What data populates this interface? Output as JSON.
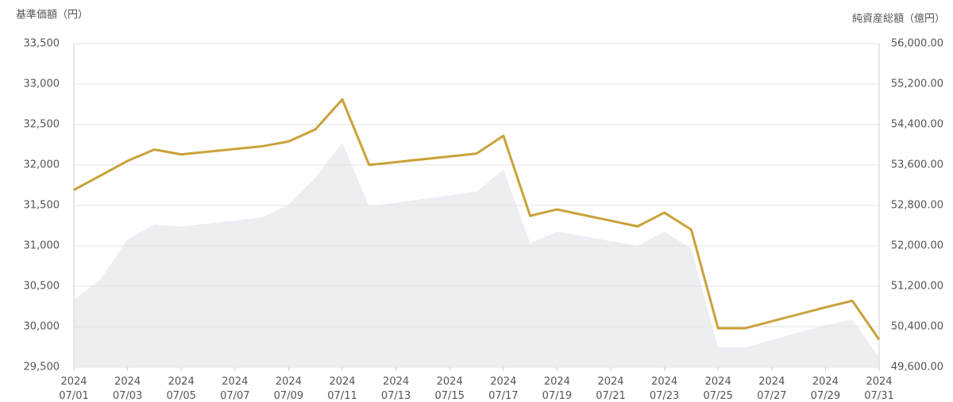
{
  "chart_data": {
    "type": "line-area",
    "y_label": "基準価額（円）",
    "y2_label": "純資産総額（億円）",
    "x": [
      "2024-07-01",
      "2024-07-02",
      "2024-07-03",
      "2024-07-04",
      "2024-07-05",
      "2024-07-08",
      "2024-07-09",
      "2024-07-10",
      "2024-07-11",
      "2024-07-12",
      "2024-07-16",
      "2024-07-17",
      "2024-07-18",
      "2024-07-19",
      "2024-07-22",
      "2024-07-23",
      "2024-07-24",
      "2024-07-25",
      "2024-07-26",
      "2024-07-29",
      "2024-07-30",
      "2024-07-31"
    ],
    "series": [
      {
        "name": "基準価額",
        "kind": "line",
        "color": "#c9a23a",
        "values": [
          31690,
          31870,
          32050,
          32190,
          32130,
          32230,
          32290,
          32440,
          32810,
          32000,
          32140,
          32360,
          31370,
          31450,
          31240,
          31410,
          31200,
          29980,
          29980,
          30240,
          30320,
          29840
        ]
      },
      {
        "name": "純資産総額",
        "kind": "area",
        "axis": "y2",
        "color": "#eceef2",
        "values": [
          50930,
          51340,
          52130,
          52420,
          52380,
          52560,
          52820,
          53350,
          54040,
          52780,
          53070,
          53510,
          52050,
          52280,
          52000,
          52280,
          51950,
          49990,
          49990,
          50430,
          50540,
          49800
        ]
      }
    ],
    "xlim": [
      "2024-07-01",
      "2024-07-31"
    ],
    "xticks": [
      {
        "value": "2024-07-01",
        "label": [
          "2024",
          "07/01"
        ]
      },
      {
        "value": "2024-07-03",
        "label": [
          "2024",
          "07/03"
        ]
      },
      {
        "value": "2024-07-05",
        "label": [
          "2024",
          "07/05"
        ]
      },
      {
        "value": "2024-07-07",
        "label": [
          "2024",
          "07/07"
        ]
      },
      {
        "value": "2024-07-09",
        "label": [
          "2024",
          "07/09"
        ]
      },
      {
        "value": "2024-07-11",
        "label": [
          "2024",
          "07/11"
        ]
      },
      {
        "value": "2024-07-13",
        "label": [
          "2024",
          "07/13"
        ]
      },
      {
        "value": "2024-07-15",
        "label": [
          "2024",
          "07/15"
        ]
      },
      {
        "value": "2024-07-17",
        "label": [
          "2024",
          "07/17"
        ]
      },
      {
        "value": "2024-07-19",
        "label": [
          "2024",
          "07/19"
        ]
      },
      {
        "value": "2024-07-21",
        "label": [
          "2024",
          "07/21"
        ]
      },
      {
        "value": "2024-07-23",
        "label": [
          "2024",
          "07/23"
        ]
      },
      {
        "value": "2024-07-25",
        "label": [
          "2024",
          "07/25"
        ]
      },
      {
        "value": "2024-07-27",
        "label": [
          "2024",
          "07/27"
        ]
      },
      {
        "value": "2024-07-29",
        "label": [
          "2024",
          "07/29"
        ]
      },
      {
        "value": "2024-07-31",
        "label": [
          "2024",
          "07/31"
        ]
      }
    ],
    "ylim": [
      29500,
      33500
    ],
    "yticks": [
      {
        "value": 29500,
        "label": "29,500"
      },
      {
        "value": 30000,
        "label": "30,000"
      },
      {
        "value": 30500,
        "label": "30,500"
      },
      {
        "value": 31000,
        "label": "31,000"
      },
      {
        "value": 31500,
        "label": "31,500"
      },
      {
        "value": 32000,
        "label": "32,000"
      },
      {
        "value": 32500,
        "label": "32,500"
      },
      {
        "value": 33000,
        "label": "33,000"
      },
      {
        "value": 33500,
        "label": "33,500"
      }
    ],
    "y2lim": [
      49600,
      56000
    ],
    "y2ticks": [
      {
        "value": 49600,
        "label": "49,600.00"
      },
      {
        "value": 50400,
        "label": "50,400.00"
      },
      {
        "value": 51200,
        "label": "51,200.00"
      },
      {
        "value": 52000,
        "label": "52,000.00"
      },
      {
        "value": 52800,
        "label": "52,800.00"
      },
      {
        "value": 53600,
        "label": "53,600.00"
      },
      {
        "value": 54400,
        "label": "54,400.00"
      },
      {
        "value": 55200,
        "label": "55,200.00"
      },
      {
        "value": 56000,
        "label": "56,000.00"
      }
    ],
    "grid": true
  }
}
